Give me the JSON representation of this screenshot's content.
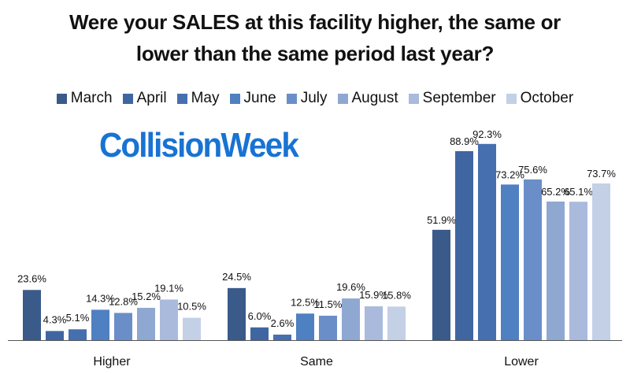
{
  "title_line1": "Were your SALES at this facility higher, the same or",
  "title_line2": "lower than the same period last year?",
  "logo_text": "CollisionWeek",
  "logo_color": "#1873d3",
  "chart_data": {
    "type": "bar",
    "categories": [
      "Higher",
      "Same",
      "Lower"
    ],
    "series": [
      {
        "name": "March",
        "color": "#3a5a8a",
        "values": [
          23.6,
          24.5,
          51.9
        ]
      },
      {
        "name": "April",
        "color": "#3f66a1",
        "values": [
          4.3,
          6.0,
          88.9
        ]
      },
      {
        "name": "May",
        "color": "#466fb0",
        "values": [
          5.1,
          2.6,
          92.3
        ]
      },
      {
        "name": "June",
        "color": "#4f80c1",
        "values": [
          14.3,
          12.5,
          73.2
        ]
      },
      {
        "name": "July",
        "color": "#6a8fc8",
        "values": [
          12.8,
          11.5,
          75.6
        ]
      },
      {
        "name": "August",
        "color": "#8fa8d2",
        "values": [
          15.2,
          19.6,
          65.2
        ]
      },
      {
        "name": "September",
        "color": "#a9badd",
        "values": [
          19.1,
          15.9,
          65.1
        ]
      },
      {
        "name": "October",
        "color": "#c3d0e6",
        "values": [
          10.5,
          15.8,
          73.7
        ]
      }
    ],
    "data_labels": [
      [
        "23.6%",
        "24.5%",
        "51.9%"
      ],
      [
        "4.3%",
        "6.0%",
        "88.9%"
      ],
      [
        "5.1%",
        "2.6%",
        "92.3%"
      ],
      [
        "14.3%",
        "12.5%",
        "73.2%"
      ],
      [
        "12.8%",
        "11.5%",
        "75.6%"
      ],
      [
        "15.2%",
        "19.6%",
        "65.2%"
      ],
      [
        "19.1%",
        "15.9%",
        "65.1%"
      ],
      [
        "10.5%",
        "15.8%",
        "73.7%"
      ]
    ],
    "ylim": [
      0,
      100
    ],
    "legend": "top",
    "grid": false
  }
}
